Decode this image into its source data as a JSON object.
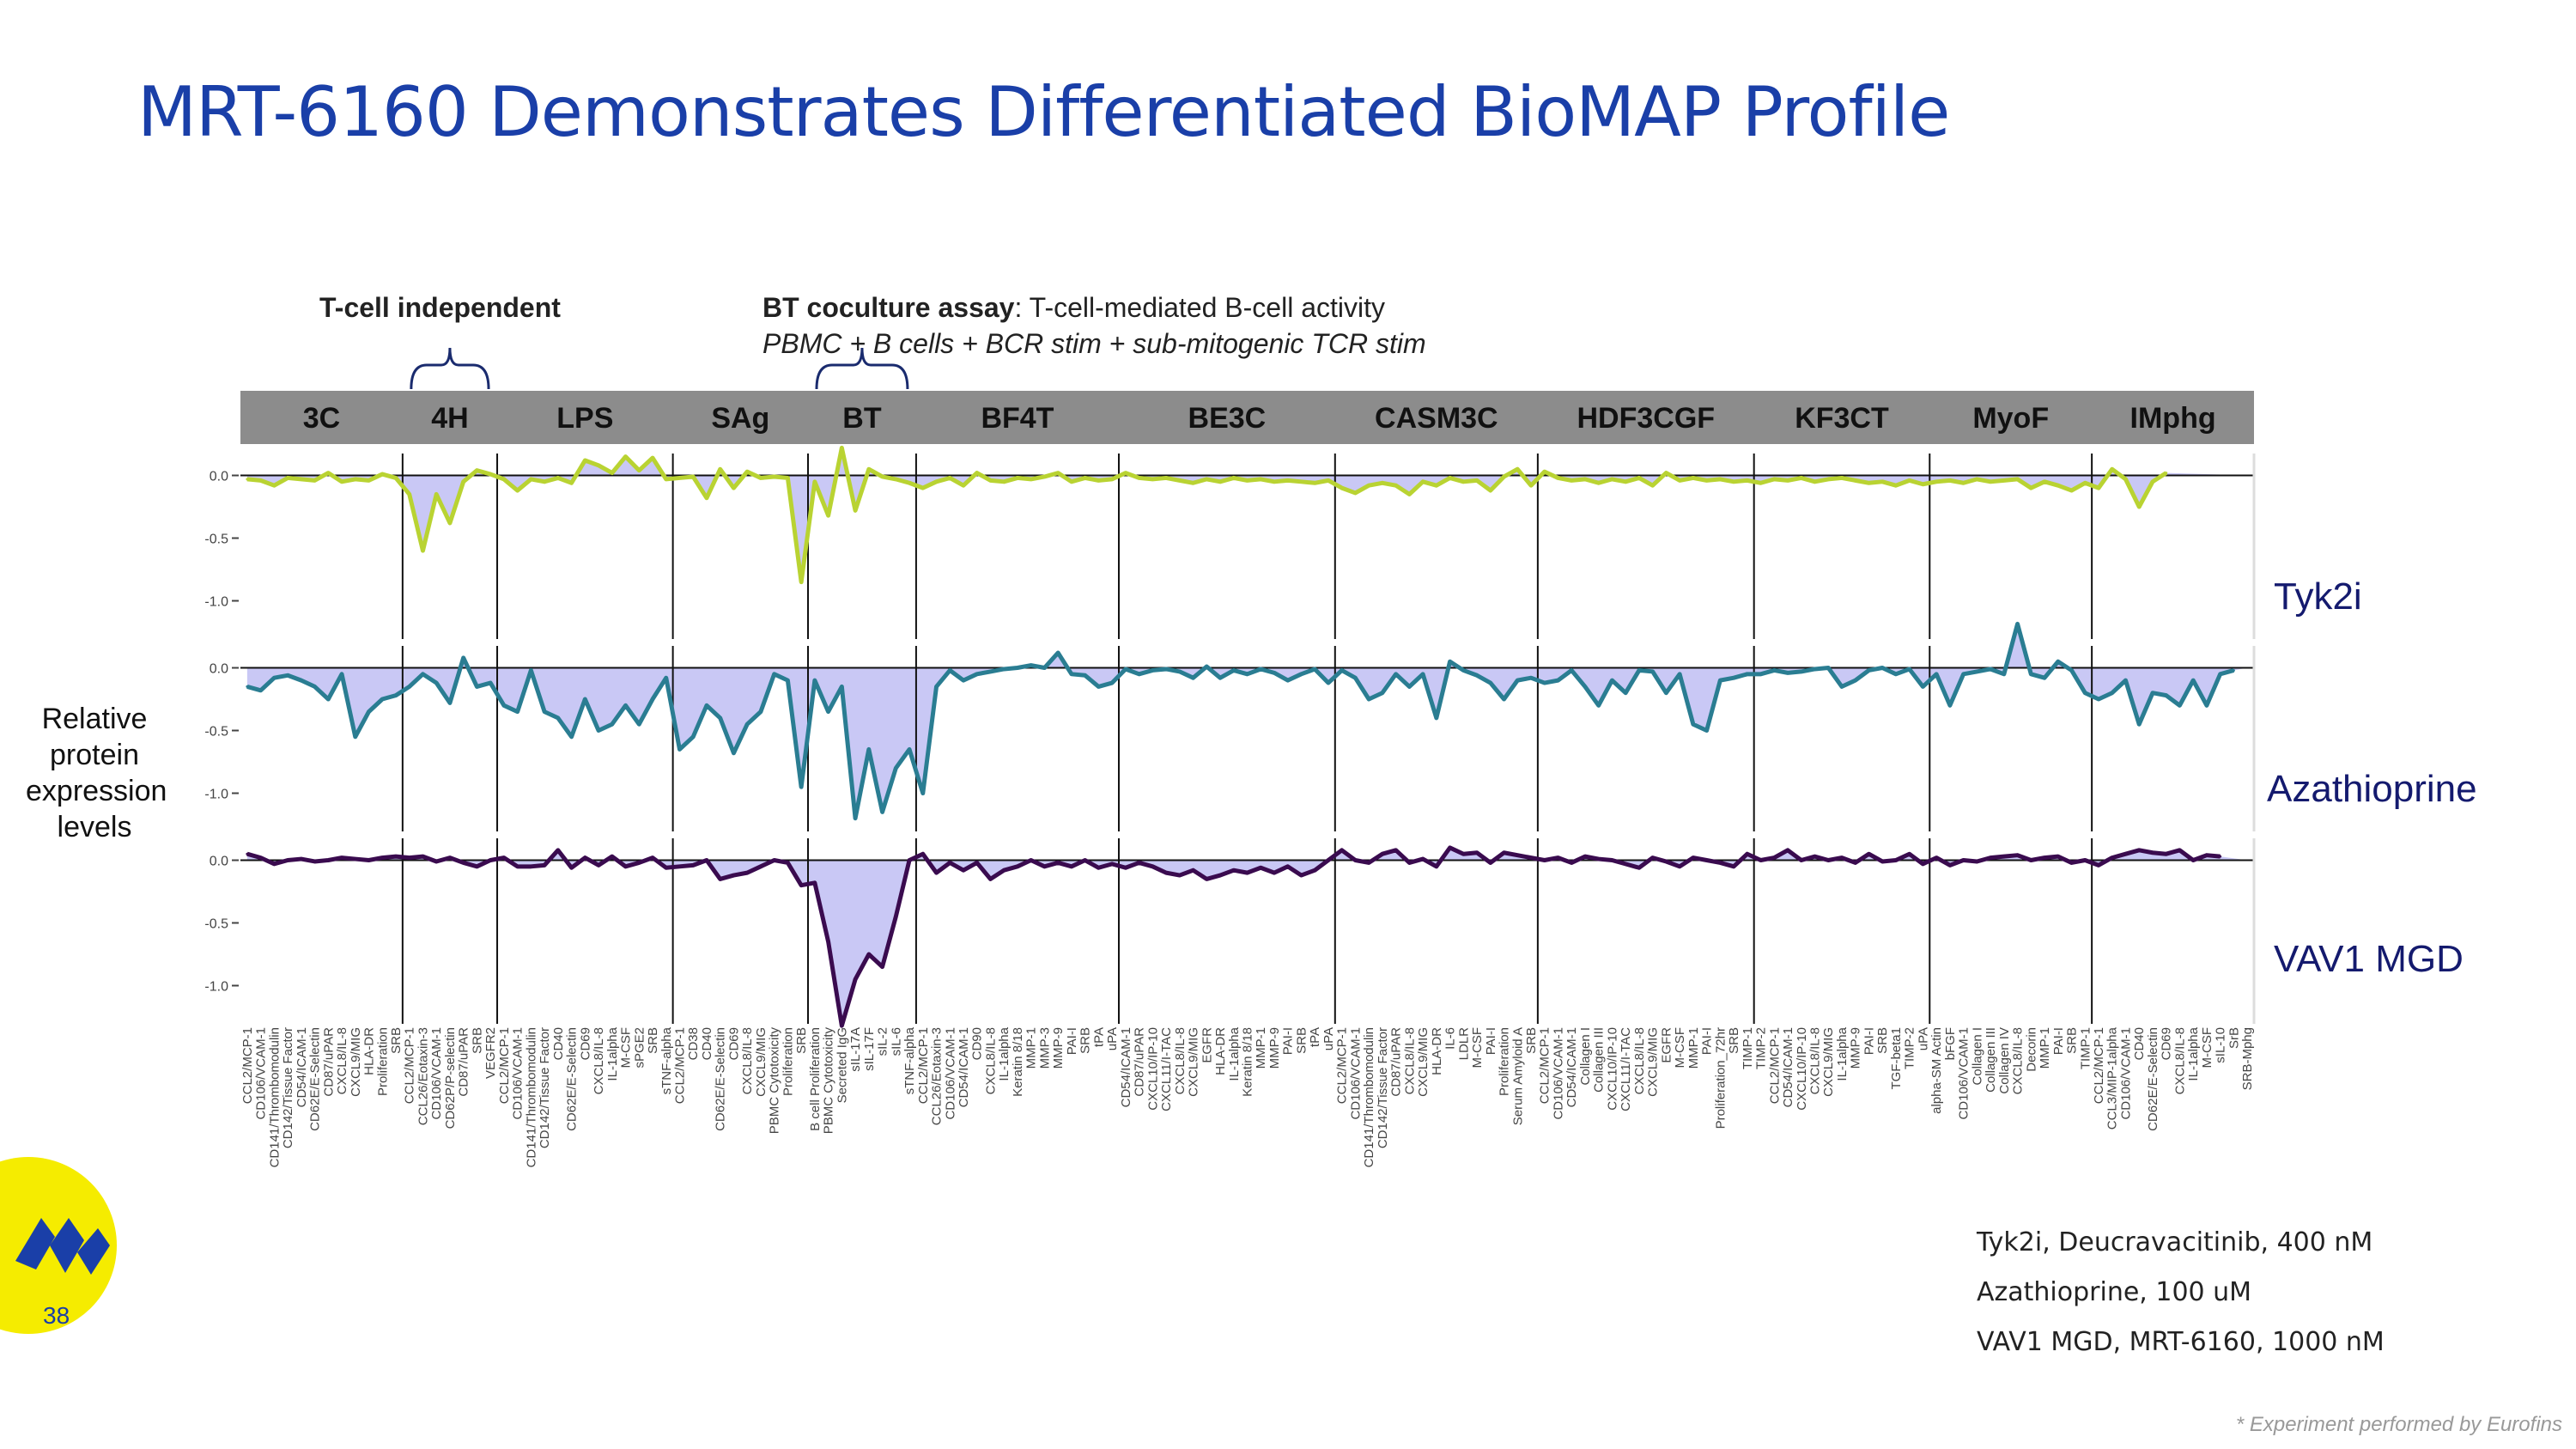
{
  "title": "MRT-6160 Demonstrates Differentiated BioMAP Profile",
  "annotations": {
    "tcell_independent": "T-cell independent",
    "bt_assay_bold": "BT coculture assay",
    "bt_assay_rest": ": T-cell-mediated B-cell activity",
    "bt_assay_sub": "PBMC + B cells + BCR stim + sub-mitogenic TCR stim"
  },
  "ylabel": [
    "Relative",
    "protein",
    "expression",
    "levels"
  ],
  "side_labels": {
    "tyk2i": "Tyk2i",
    "azathioprine": "Azathioprine",
    "vav1": "VAV1 MGD"
  },
  "legend": [
    "Tyk2i, Deucravacitinib, 400 nM",
    "Azathioprine, 100 uM",
    "VAV1 MGD, MRT-6160, 1000 nM"
  ],
  "footnote": "* Experiment performed by Eurofins",
  "page_number": "38",
  "colors": {
    "title": "#1a3fa8",
    "header_bar": "#8c8c8c",
    "fill": "#c9c8f5",
    "tyk2i": "#b9d332",
    "azathioprine": "#2a7d92",
    "vav1": "#3a0b4f",
    "logo": "#f5ec00",
    "logo_mark": "#1a3fa8"
  },
  "chart_data": {
    "type": "line",
    "ylim": [
      -1.25,
      0.12
    ],
    "yticks": [
      0.0,
      -0.5,
      -1.0
    ],
    "ytick_labels": [
      "0.0",
      "-0.5",
      "-1.0"
    ],
    "systems": [
      {
        "name": "3C",
        "markers": [
          "CCL2/MCP-1",
          "CD106/VCAM-1",
          "CD141/Thrombomodulin",
          "CD142/Tissue Factor",
          "CD54/ICAM-1",
          "CD62E/E-Selectin",
          "CD87/uPAR",
          "CXCL8/IL-8",
          "CXCL9/MIG",
          "HLA-DR",
          "Proliferation",
          "SRB"
        ]
      },
      {
        "name": "4H",
        "markers": [
          "CCL2/MCP-1",
          "CCL26/Eotaxin-3",
          "CD106/VCAM-1",
          "CD62P/P-selectin",
          "CD87/uPAR",
          "SRB",
          "VEGFR2"
        ]
      },
      {
        "name": "LPS",
        "markers": [
          "CCL2/MCP-1",
          "CD106/VCAM-1",
          "CD141/Thrombomodulin",
          "CD142/Tissue Factor",
          "CD40",
          "CD62E/E-Selectin",
          "CD69",
          "CXCL8/IL-8",
          "IL-1alpha",
          "M-CSF",
          "sPGE2",
          "SRB",
          "sTNF-alpha"
        ]
      },
      {
        "name": "SAg",
        "markers": [
          "CCL2/MCP-1",
          "CD38",
          "CD40",
          "CD62E/E-Selectin",
          "CD69",
          "CXCL8/IL-8",
          "CXCL9/MIG",
          "PBMC Cytotoxicity",
          "Proliferation",
          "SRB"
        ]
      },
      {
        "name": "BT",
        "markers": [
          "B cell Proliferation",
          "PBMC Cytotoxicity",
          "Secreted IgG",
          "sIL-17A",
          "sIL-17F",
          "sIL-2",
          "sIL-6",
          "sTNF-alpha"
        ]
      },
      {
        "name": "BF4T",
        "markers": [
          "CCL2/MCP-1",
          "CCL26/Eotaxin-3",
          "CD106/VCAM-1",
          "CD54/ICAM-1",
          "CD90",
          "CXCL8/IL-8",
          "IL-1alpha",
          "Keratin 8/18",
          "MMP-1",
          "MMP-3",
          "MMP-9",
          "PAI-I",
          "SRB",
          "tPA",
          "uPA"
        ]
      },
      {
        "name": "BE3C",
        "markers": [
          "CD54/ICAM-1",
          "CD87/uPAR",
          "CXCL10/IP-10",
          "CXCL11/I-TAC",
          "CXCL8/IL-8",
          "CXCL9/MIG",
          "EGFR",
          "HLA-DR",
          "IL-1alpha",
          "Keratin 8/18",
          "MMP-1",
          "MMP-9",
          "PAI-I",
          "SRB",
          "tPA",
          "uPA"
        ]
      },
      {
        "name": "CASM3C",
        "markers": [
          "CCL2/MCP-1",
          "CD106/VCAM-1",
          "CD141/Thrombomodulin",
          "CD142/Tissue Factor",
          "CD87/uPAR",
          "CXCL8/IL-8",
          "CXCL9/MIG",
          "HLA-DR",
          "IL-6",
          "LDLR",
          "M-CSF",
          "PAI-I",
          "Proliferation",
          "Serum Amyloid A",
          "SRB"
        ]
      },
      {
        "name": "HDF3CGF",
        "markers": [
          "CCL2/MCP-1",
          "CD106/VCAM-1",
          "CD54/ICAM-1",
          "Collagen I",
          "Collagen III",
          "CXCL10/IP-10",
          "CXCL11/I-TAC",
          "CXCL8/IL-8",
          "CXCL9/MIG",
          "EGFR",
          "M-CSF",
          "MMP-1",
          "PAI-I",
          "Proliferation_72hr",
          "SRB",
          "TIMP-1"
        ]
      },
      {
        "name": "KF3CT",
        "markers": [
          "TIMP-2",
          "CCL2/MCP-1",
          "CD54/ICAM-1",
          "CXCL10/IP-10",
          "CXCL8/IL-8",
          "CXCL9/MIG",
          "IL-1alpha",
          "MMP-9",
          "PAI-I",
          "SRB",
          "TGF-beta1",
          "TIMP-2",
          "uPA"
        ]
      },
      {
        "name": "MyoF",
        "markers": [
          "alpha-SM Actin",
          "bFGF",
          "CD106/VCAM-1",
          "Collagen I",
          "Collagen III",
          "Collagen IV",
          "CXCL8/IL-8",
          "Decorin",
          "MMP-1",
          "PAI-I",
          "SRB",
          "TIMP-1"
        ]
      },
      {
        "name": "IMphg",
        "markers": [
          "CCL2/MCP-1",
          "CCL3/MIP-1alpha",
          "CD106/VCAM-1",
          "CD40",
          "CD62E/E-Selectin",
          "CD69",
          "CXCL8/IL-8",
          "IL-1alpha",
          "M-CSF",
          "sIL-10",
          "SrB",
          "SRB-Mphg"
        ]
      }
    ],
    "series": [
      {
        "name": "Tyk2i",
        "values": [
          -0.03,
          -0.04,
          -0.08,
          -0.02,
          -0.03,
          -0.04,
          0.02,
          -0.05,
          -0.03,
          -0.04,
          0.01,
          -0.02,
          -0.15,
          -0.6,
          -0.15,
          -0.38,
          -0.05,
          0.04,
          0.01,
          -0.03,
          -0.12,
          -0.03,
          -0.05,
          -0.02,
          -0.06,
          0.12,
          0.08,
          0.02,
          0.15,
          0.04,
          0.14,
          -0.03,
          -0.02,
          -0.01,
          -0.18,
          0.05,
          -0.1,
          0.03,
          -0.02,
          -0.01,
          -0.02,
          -0.85,
          -0.05,
          -0.32,
          0.22,
          -0.28,
          0.05,
          -0.01,
          -0.03,
          -0.06,
          -0.1,
          -0.05,
          -0.02,
          -0.08,
          0.02,
          -0.04,
          -0.05,
          -0.02,
          -0.03,
          -0.01,
          0.02,
          -0.05,
          -0.02,
          -0.04,
          -0.03,
          0.02,
          -0.02,
          -0.03,
          -0.02,
          -0.04,
          -0.06,
          -0.03,
          -0.05,
          -0.02,
          -0.04,
          -0.03,
          -0.05,
          -0.04,
          -0.05,
          -0.06,
          -0.04,
          -0.1,
          -0.14,
          -0.08,
          -0.06,
          -0.08,
          -0.15,
          -0.05,
          -0.08,
          -0.02,
          -0.05,
          -0.04,
          -0.12,
          -0.01,
          0.05,
          -0.08,
          0.03,
          -0.02,
          -0.04,
          -0.03,
          -0.06,
          -0.03,
          -0.05,
          -0.02,
          -0.08,
          0.02,
          -0.04,
          -0.02,
          -0.04,
          -0.03,
          -0.05,
          -0.04,
          -0.06,
          -0.03,
          -0.04,
          -0.02,
          -0.05,
          -0.03,
          -0.02,
          -0.04,
          -0.06,
          -0.05,
          -0.08,
          -0.04,
          -0.07,
          -0.05,
          -0.04,
          -0.06,
          -0.03,
          -0.05,
          -0.04,
          -0.03,
          -0.1,
          -0.05,
          -0.08,
          -0.12,
          -0.06,
          -0.1,
          0.05,
          -0.03,
          -0.25,
          -0.05,
          0.02
        ]
      },
      {
        "name": "Azathioprine",
        "values": [
          -0.15,
          -0.18,
          -0.08,
          -0.06,
          -0.1,
          -0.15,
          -0.25,
          -0.05,
          -0.55,
          -0.35,
          -0.25,
          -0.22,
          -0.15,
          -0.05,
          -0.12,
          -0.28,
          0.08,
          -0.15,
          -0.12,
          -0.3,
          -0.35,
          -0.02,
          -0.35,
          -0.4,
          -0.55,
          -0.25,
          -0.5,
          -0.45,
          -0.3,
          -0.45,
          -0.25,
          -0.08,
          -0.65,
          -0.55,
          -0.3,
          -0.4,
          -0.68,
          -0.45,
          -0.35,
          -0.05,
          -0.1,
          -0.95,
          -0.1,
          -0.35,
          -0.15,
          -1.2,
          -0.65,
          -1.15,
          -0.8,
          -0.65,
          -1.0,
          -0.15,
          -0.02,
          -0.1,
          -0.05,
          -0.03,
          -0.01,
          0.0,
          0.02,
          0.0,
          0.12,
          -0.05,
          -0.06,
          -0.15,
          -0.12,
          -0.01,
          -0.05,
          -0.02,
          -0.01,
          -0.03,
          -0.08,
          0.01,
          -0.08,
          -0.02,
          -0.05,
          -0.01,
          -0.04,
          -0.1,
          -0.05,
          -0.01,
          -0.12,
          -0.02,
          -0.08,
          -0.25,
          -0.2,
          -0.05,
          -0.15,
          -0.05,
          -0.4,
          0.05,
          -0.02,
          -0.06,
          -0.12,
          -0.25,
          -0.1,
          -0.08,
          -0.12,
          -0.1,
          -0.02,
          -0.15,
          -0.3,
          -0.1,
          -0.2,
          -0.02,
          -0.03,
          -0.2,
          -0.05,
          -0.45,
          -0.5,
          -0.1,
          -0.08,
          -0.05,
          -0.05,
          -0.02,
          -0.04,
          -0.03,
          -0.01,
          0.0,
          -0.15,
          -0.1,
          -0.02,
          0.0,
          -0.05,
          -0.01,
          -0.15,
          -0.05,
          -0.3,
          -0.05,
          -0.03,
          -0.01,
          -0.05,
          0.35,
          -0.05,
          -0.08,
          0.05,
          -0.02,
          -0.2,
          -0.25,
          -0.2,
          -0.1,
          -0.45,
          -0.2,
          -0.22,
          -0.3,
          -0.1,
          -0.3,
          -0.05,
          -0.02
        ]
      },
      {
        "name": "VAV1 MGD",
        "values": [
          0.05,
          0.02,
          -0.03,
          0.0,
          0.01,
          -0.01,
          0.0,
          0.02,
          0.01,
          0.0,
          0.02,
          0.03,
          0.02,
          0.03,
          -0.01,
          0.02,
          -0.02,
          -0.05,
          0.0,
          0.02,
          -0.05,
          -0.05,
          -0.04,
          0.08,
          -0.06,
          0.02,
          -0.04,
          0.03,
          -0.05,
          -0.02,
          0.02,
          -0.06,
          -0.05,
          -0.04,
          0.0,
          -0.15,
          -0.12,
          -0.1,
          -0.05,
          0.0,
          -0.02,
          -0.2,
          -0.18,
          -0.65,
          -1.32,
          -0.95,
          -0.75,
          -0.85,
          -0.45,
          0.0,
          0.05,
          -0.1,
          -0.02,
          -0.08,
          -0.02,
          -0.15,
          -0.08,
          -0.05,
          0.0,
          -0.05,
          -0.02,
          -0.05,
          0.0,
          -0.06,
          -0.03,
          -0.06,
          -0.02,
          -0.05,
          -0.1,
          -0.12,
          -0.08,
          -0.15,
          -0.12,
          -0.08,
          -0.1,
          -0.06,
          -0.1,
          -0.05,
          -0.12,
          -0.08,
          0.0,
          0.08,
          0.0,
          -0.02,
          0.05,
          0.08,
          -0.02,
          0.01,
          -0.05,
          0.1,
          0.05,
          0.06,
          -0.02,
          0.06,
          0.04,
          0.02,
          0.0,
          0.02,
          -0.02,
          0.03,
          0.01,
          0.0,
          -0.03,
          -0.06,
          0.02,
          -0.01,
          -0.05,
          0.02,
          0.0,
          -0.02,
          -0.05,
          0.05,
          0.0,
          0.02,
          0.08,
          0.0,
          0.03,
          0.0,
          0.02,
          -0.02,
          0.05,
          -0.01,
          0.0,
          0.05,
          -0.03,
          0.02,
          -0.04,
          0.0,
          -0.01,
          0.02,
          0.03,
          0.04,
          0.0,
          0.02,
          0.03,
          -0.02,
          0.0,
          -0.04,
          0.02,
          0.05,
          0.08,
          0.06,
          0.05,
          0.08,
          0.0,
          0.04,
          0.03
        ]
      }
    ]
  }
}
